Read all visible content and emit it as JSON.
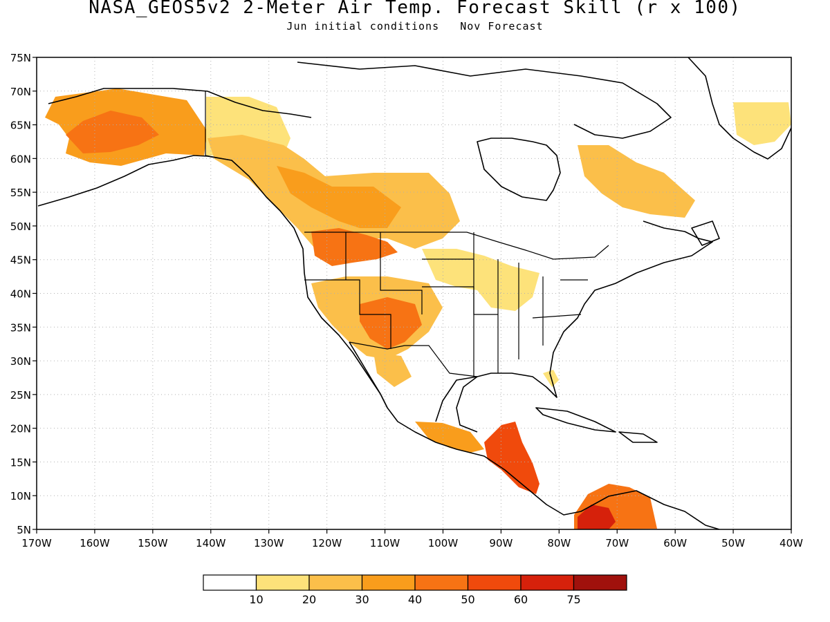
{
  "title": "NASA_GEOS5v2 2-Meter Air Temp. Forecast Skill (r x 100)",
  "subtitle": "Jun initial conditions   Nov Forecast",
  "map": {
    "lon_range": [
      -170,
      -40
    ],
    "lat_range": [
      5,
      75
    ],
    "lon_ticks": [
      "170W",
      "160W",
      "150W",
      "140W",
      "130W",
      "120W",
      "110W",
      "100W",
      "90W",
      "80W",
      "70W",
      "60W",
      "50W",
      "40W"
    ],
    "lat_ticks": [
      "5N",
      "10N",
      "15N",
      "20N",
      "25N",
      "30N",
      "35N",
      "40N",
      "45N",
      "50N",
      "55N",
      "60N",
      "65N",
      "70N",
      "75N"
    ],
    "grid": "dotted",
    "colors": {
      "land_outline": "#000000",
      "grid": "#b0b0b0"
    }
  },
  "colorbar": {
    "labels": [
      "10",
      "20",
      "30",
      "40",
      "50",
      "60",
      "75"
    ],
    "colors": [
      "#ffffff",
      "#fde27a",
      "#fbbf4a",
      "#f99d1c",
      "#f77314",
      "#f04a0c",
      "#d6210b",
      "#a0110c"
    ]
  },
  "skill_regions": [
    {
      "name": "alaska",
      "level": 3
    },
    {
      "name": "alaska-core",
      "level": 4
    },
    {
      "name": "yukon",
      "level": 1
    },
    {
      "name": "bc-prairies",
      "level": 2
    },
    {
      "name": "bc-prairies-core",
      "level": 3
    },
    {
      "name": "northwest-us",
      "level": 4
    },
    {
      "name": "southwest-us",
      "level": 2
    },
    {
      "name": "southwest-core",
      "level": 4
    },
    {
      "name": "midwest",
      "level": 1
    },
    {
      "name": "labrador",
      "level": 2
    },
    {
      "name": "greenland-east",
      "level": 1
    },
    {
      "name": "mexico-south",
      "level": 3
    },
    {
      "name": "central-america",
      "level": 5
    },
    {
      "name": "colombia",
      "level": 4
    },
    {
      "name": "colombia-core",
      "level": 6
    },
    {
      "name": "florida",
      "level": 1
    },
    {
      "name": "baja-mexico",
      "level": 2
    }
  ]
}
